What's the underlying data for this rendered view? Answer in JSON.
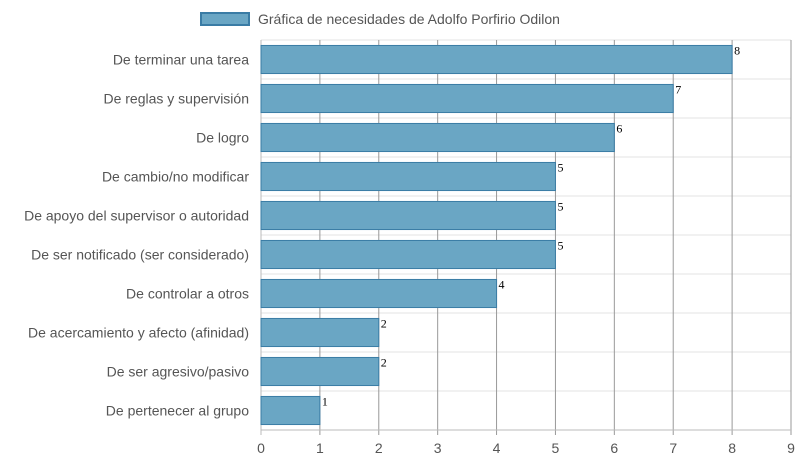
{
  "chart_data": {
    "type": "bar",
    "orientation": "horizontal",
    "legend": {
      "label": "Gráfica de necesidades de Adolfo Porfirio Odilon",
      "placement": "top"
    },
    "categories": [
      "De terminar una tarea",
      "De reglas y supervisión",
      "De logro",
      "De cambio/no modificar",
      "De apoyo del supervisor o autoridad",
      "De ser notificado (ser considerado)",
      "De controlar a otros",
      "De acercamiento y afecto (afinidad)",
      "De ser agresivo/pasivo",
      "De pertenecer al grupo"
    ],
    "values": [
      8,
      7,
      6,
      5,
      5,
      5,
      4,
      2,
      2,
      1
    ],
    "xlim": [
      0,
      9
    ],
    "xticks": [
      "0",
      "1",
      "2",
      "3",
      "4",
      "5",
      "6",
      "7",
      "8",
      "9"
    ],
    "grid": true,
    "colors": {
      "bar_fill": "#6aa6c4",
      "bar_border": "#3a7ca5"
    }
  }
}
